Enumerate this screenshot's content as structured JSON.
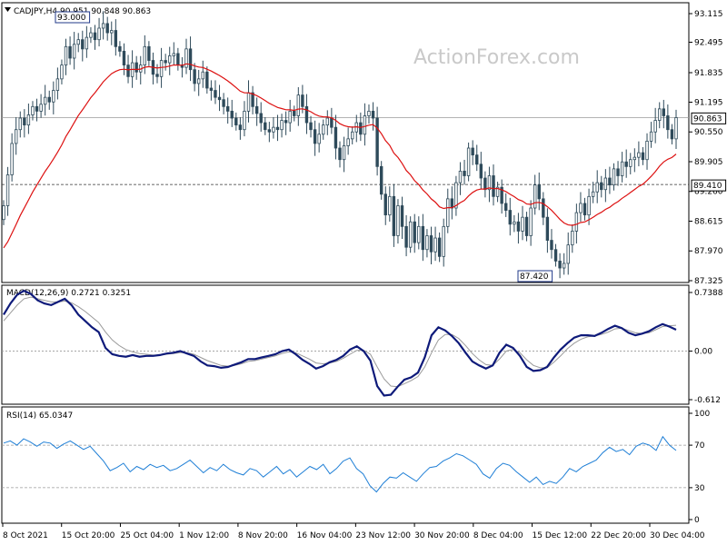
{
  "chart_data": [
    {
      "type": "candlestick",
      "panel": "price",
      "title": "CADJPY,H4  90.951 90.848 90.863",
      "watermark": "ActionForex.com",
      "ylim": [
        87.0,
        93.5
      ],
      "yticks": [
        "93.115",
        "92.495",
        "91.835",
        "91.195",
        "90.550",
        "89.905",
        "89.260",
        "88.615",
        "87.970",
        "87.325"
      ],
      "current_price": "90.863",
      "level": "89.410",
      "high_label": "93.000",
      "low_label": "87.420",
      "moving_average_color": "#dd1111",
      "candle_color": "#2e4a5a",
      "close": [
        88.95,
        89.62,
        90.3,
        90.6,
        90.85,
        90.7,
        90.92,
        91.1,
        91.0,
        91.15,
        91.3,
        91.2,
        91.45,
        91.7,
        92.0,
        92.4,
        92.15,
        92.45,
        92.55,
        92.35,
        92.6,
        92.7,
        92.55,
        92.8,
        92.9,
        92.7,
        92.75,
        92.4,
        92.3,
        92.0,
        91.75,
        92.05,
        91.85,
        92.0,
        92.4,
        92.1,
        91.8,
        91.75,
        92.1,
        92.05,
        92.2,
        92.25,
        92.0,
        91.95,
        92.35,
        91.9,
        91.6,
        91.7,
        91.85,
        91.5,
        91.45,
        91.3,
        91.25,
        91.1,
        91.0,
        90.85,
        90.7,
        90.6,
        91.0,
        91.4,
        91.1,
        90.95,
        90.75,
        90.6,
        90.55,
        90.65,
        90.6,
        90.8,
        90.75,
        91.0,
        90.9,
        91.35,
        91.1,
        90.75,
        90.6,
        90.3,
        90.5,
        90.7,
        90.85,
        90.65,
        90.2,
        89.95,
        90.25,
        90.4,
        90.55,
        90.75,
        90.5,
        90.9,
        91.0,
        90.85,
        89.8,
        89.2,
        88.75,
        89.15,
        88.3,
        88.95,
        88.5,
        88.05,
        88.6,
        88.15,
        88.5,
        88.0,
        88.3,
        87.95,
        88.25,
        87.85,
        88.5,
        89.1,
        88.9,
        89.45,
        89.7,
        89.6,
        90.2,
        90.05,
        89.85,
        89.55,
        89.3,
        89.6,
        89.15,
        89.35,
        89.0,
        88.85,
        88.55,
        88.6,
        88.4,
        88.7,
        88.3,
        88.9,
        89.4,
        89.1,
        88.7,
        88.2,
        88.0,
        87.75,
        87.6,
        87.7,
        88.1,
        88.4,
        88.8,
        89.0,
        88.75,
        89.15,
        89.25,
        89.45,
        89.3,
        89.55,
        89.4,
        89.75,
        89.6,
        89.9,
        89.8,
        89.95,
        90.0,
        90.1,
        89.95,
        90.35,
        90.55,
        90.8,
        91.05,
        90.9,
        90.6,
        90.4,
        90.86
      ]
    },
    {
      "type": "line",
      "panel": "MACD",
      "label": "MACD(12,26,9) 0.2721 0.3251",
      "yticks": [
        "0.7388",
        "0.00",
        "-0.612"
      ],
      "ylim": [
        -0.7,
        0.8
      ],
      "series": [
        {
          "name": "MACD",
          "color": "#0e1a7a",
          "values": [
            0.46,
            0.6,
            0.71,
            0.76,
            0.72,
            0.64,
            0.6,
            0.58,
            0.62,
            0.66,
            0.58,
            0.46,
            0.38,
            0.3,
            0.24,
            0.04,
            -0.04,
            -0.06,
            -0.07,
            -0.05,
            -0.07,
            -0.06,
            -0.06,
            -0.05,
            -0.03,
            -0.02,
            0.0,
            -0.03,
            -0.06,
            -0.13,
            -0.18,
            -0.19,
            -0.21,
            -0.2,
            -0.17,
            -0.14,
            -0.1,
            -0.1,
            -0.08,
            -0.06,
            -0.04,
            0.0,
            0.02,
            -0.04,
            -0.11,
            -0.16,
            -0.22,
            -0.19,
            -0.14,
            -0.11,
            -0.06,
            0.02,
            0.06,
            0.0,
            -0.12,
            -0.44,
            -0.56,
            -0.55,
            -0.45,
            -0.36,
            -0.33,
            -0.27,
            -0.08,
            0.2,
            0.3,
            0.26,
            0.19,
            0.1,
            -0.02,
            -0.13,
            -0.18,
            -0.22,
            -0.18,
            -0.02,
            0.08,
            0.04,
            -0.06,
            -0.2,
            -0.25,
            -0.24,
            -0.2,
            -0.08,
            0.02,
            0.1,
            0.17,
            0.2,
            0.2,
            0.19,
            0.23,
            0.28,
            0.32,
            0.29,
            0.23,
            0.2,
            0.22,
            0.25,
            0.3,
            0.34,
            0.31,
            0.27
          ]
        },
        {
          "name": "Signal",
          "color": "#9a9a9a",
          "values": [
            0.38,
            0.48,
            0.58,
            0.66,
            0.68,
            0.66,
            0.64,
            0.62,
            0.62,
            0.63,
            0.61,
            0.56,
            0.5,
            0.43,
            0.36,
            0.24,
            0.14,
            0.07,
            0.02,
            -0.01,
            -0.03,
            -0.04,
            -0.05,
            -0.05,
            -0.04,
            -0.03,
            -0.02,
            -0.02,
            -0.04,
            -0.08,
            -0.12,
            -0.15,
            -0.18,
            -0.19,
            -0.18,
            -0.16,
            -0.13,
            -0.12,
            -0.1,
            -0.08,
            -0.06,
            -0.03,
            -0.01,
            -0.02,
            -0.06,
            -0.1,
            -0.15,
            -0.16,
            -0.15,
            -0.13,
            -0.09,
            -0.04,
            0.01,
            0.01,
            -0.04,
            -0.2,
            -0.35,
            -0.44,
            -0.45,
            -0.41,
            -0.37,
            -0.32,
            -0.2,
            -0.02,
            0.14,
            0.21,
            0.21,
            0.16,
            0.07,
            -0.03,
            -0.11,
            -0.17,
            -0.18,
            -0.1,
            0.0,
            0.02,
            -0.02,
            -0.11,
            -0.18,
            -0.21,
            -0.21,
            -0.14,
            -0.06,
            0.03,
            0.1,
            0.15,
            0.18,
            0.19,
            0.21,
            0.24,
            0.28,
            0.29,
            0.26,
            0.23,
            0.22,
            0.23,
            0.27,
            0.31,
            0.32,
            0.3251
          ]
        }
      ]
    },
    {
      "type": "line",
      "panel": "RSI",
      "label": "RSI(14) 65.0347",
      "yticks": [
        "100",
        "70",
        "30",
        "0"
      ],
      "ylim": [
        0,
        100
      ],
      "reference_lines": [
        70,
        30
      ],
      "series": [
        {
          "name": "RSI",
          "color": "#1f7fd6",
          "values": [
            72,
            74,
            70,
            76,
            73,
            69,
            73,
            72,
            67,
            71,
            74,
            70,
            66,
            69,
            62,
            55,
            46,
            49,
            53,
            45,
            50,
            47,
            52,
            49,
            51,
            46,
            48,
            52,
            56,
            50,
            44,
            49,
            46,
            52,
            47,
            44,
            42,
            48,
            46,
            40,
            45,
            50,
            43,
            47,
            40,
            45,
            50,
            47,
            52,
            43,
            48,
            55,
            58,
            48,
            43,
            32,
            26,
            34,
            40,
            39,
            44,
            40,
            36,
            43,
            49,
            50,
            55,
            58,
            62,
            60,
            56,
            52,
            43,
            39,
            48,
            53,
            51,
            45,
            40,
            35,
            40,
            33,
            36,
            34,
            40,
            48,
            45,
            50,
            53,
            56,
            63,
            68,
            64,
            66,
            61,
            69,
            72,
            70,
            65,
            78,
            70,
            65
          ]
        }
      ]
    }
  ],
  "x_axis": {
    "labels": [
      "8 Oct 2021",
      "15 Oct 20:00",
      "25 Oct 04:00",
      "1 Nov 12:00",
      "8 Nov 20:00",
      "16 Nov 04:00",
      "23 Nov 12:00",
      "30 Nov 20:00",
      "8 Dec 04:00",
      "15 Dec 12:00",
      "22 Dec 20:00",
      "30 Dec 04:00"
    ]
  }
}
